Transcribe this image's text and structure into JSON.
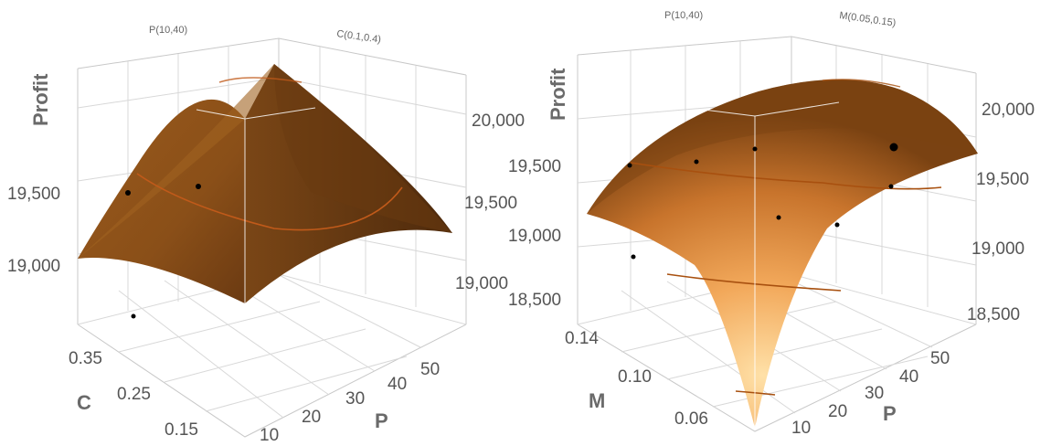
{
  "chart_data": [
    {
      "type": "surface",
      "corner_labels": [
        "P(10,40)",
        "C(0.1,0.4)"
      ],
      "zlabel": "Profit",
      "xlabel": "P",
      "ylabel": "C",
      "x_ticks": [
        "10",
        "20",
        "30",
        "40",
        "50"
      ],
      "y_ticks": [
        "0.15",
        "0.25",
        "0.35"
      ],
      "z_ticks_left": [
        "19,000",
        "19,500"
      ],
      "z_ticks_right": [
        "19,000",
        "19,500",
        "20,000"
      ],
      "surface_color": "#9a5a1c",
      "surface_shadow": "#5a3210",
      "contour_color": "#c05a1a",
      "points": [
        {
          "P": 12,
          "C": 0.38,
          "Profit": 19440
        },
        {
          "P": 18,
          "C": 0.34,
          "Profit": 19470
        },
        {
          "P": 10,
          "C": 0.18,
          "Profit": 18650
        }
      ]
    },
    {
      "type": "surface",
      "corner_labels": [
        "P(10,40)",
        "M(0.05,0.15)"
      ],
      "zlabel": "Profit",
      "xlabel": "P",
      "ylabel": "M",
      "x_ticks": [
        "10",
        "20",
        "30",
        "40",
        "50"
      ],
      "y_ticks": [
        "0.06",
        "0.10",
        "0.14"
      ],
      "z_ticks_left": [
        "18,500",
        "19,000",
        "19,500"
      ],
      "z_ticks_right": [
        "18,500",
        "19,000",
        "19,500",
        "20,000"
      ],
      "surface_color": "#e08a3c",
      "surface_highlight": "#ffd79a",
      "surface_shadow": "#8a4a14",
      "contour_color": "#a8500f",
      "points": [
        {
          "P": 12,
          "M": 0.14,
          "Profit": 19480
        },
        {
          "P": 22,
          "M": 0.13,
          "Profit": 19500
        },
        {
          "P": 30,
          "M": 0.12,
          "Profit": 19560
        },
        {
          "P": 52,
          "M": 0.13,
          "Profit": 19620
        },
        {
          "P": 50,
          "M": 0.12,
          "Profit": 19330
        },
        {
          "P": 32,
          "M": 0.09,
          "Profit": 19080
        },
        {
          "P": 42,
          "M": 0.09,
          "Profit": 19040
        },
        {
          "P": 10,
          "M": 0.11,
          "Profit": 18780
        }
      ]
    }
  ]
}
